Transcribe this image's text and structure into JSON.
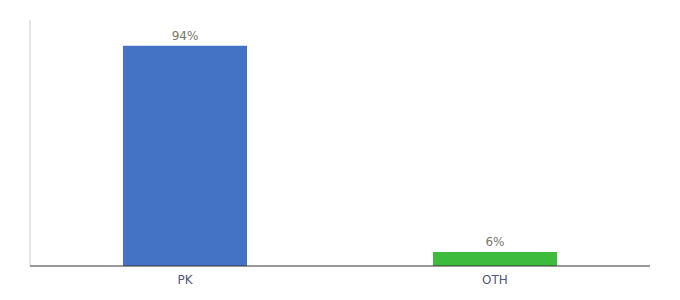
{
  "chart_data": {
    "type": "bar",
    "categories": [
      "PK",
      "OTH"
    ],
    "values": [
      94,
      6
    ],
    "value_labels": [
      "94%",
      "6%"
    ],
    "colors": [
      "#4472c4",
      "#3dbb3d"
    ],
    "ylim": [
      0,
      105
    ],
    "data_labels": true,
    "tick_labels": "x",
    "grid": false
  }
}
